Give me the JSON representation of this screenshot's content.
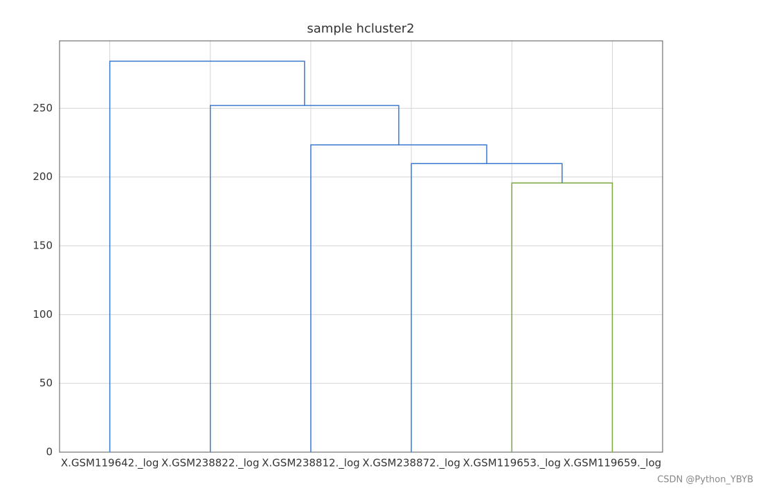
{
  "chart_data": {
    "type": "dendrogram",
    "title": "sample hcluster2",
    "xlim": [
      0,
      60
    ],
    "ylim": [
      0,
      299
    ],
    "xticks": [
      {
        "value": 5,
        "label": "X.GSM119642._log"
      },
      {
        "value": 15,
        "label": "X.GSM238822._log"
      },
      {
        "value": 25,
        "label": "X.GSM238812._log"
      },
      {
        "value": 35,
        "label": "X.GSM238872._log"
      },
      {
        "value": 45,
        "label": "X.GSM119653._log"
      },
      {
        "value": 55,
        "label": "X.GSM119659._log"
      }
    ],
    "yticks": [
      0,
      50,
      100,
      150,
      200,
      250
    ],
    "grid": true,
    "links": [
      {
        "color": "#7aa83a",
        "x": [
          45,
          45,
          55,
          55
        ],
        "y": [
          0,
          195.7,
          195.7,
          0
        ]
      },
      {
        "color": "#3a78d0",
        "x": [
          35,
          35,
          50,
          50
        ],
        "y": [
          0,
          209.8,
          209.8,
          195.7
        ]
      },
      {
        "color": "#3a78d0",
        "x": [
          25,
          25,
          42.5,
          42.5
        ],
        "y": [
          0,
          223.4,
          223.4,
          209.8
        ]
      },
      {
        "color": "#3a78d0",
        "x": [
          15,
          15,
          33.75,
          33.75
        ],
        "y": [
          0,
          252,
          252,
          223.4
        ]
      },
      {
        "color": "#3a78d0",
        "x": [
          5,
          5,
          24.375,
          24.375
        ],
        "y": [
          0,
          284.2,
          284.2,
          252
        ]
      }
    ]
  },
  "watermark": "CSDN @Python_YBYB"
}
